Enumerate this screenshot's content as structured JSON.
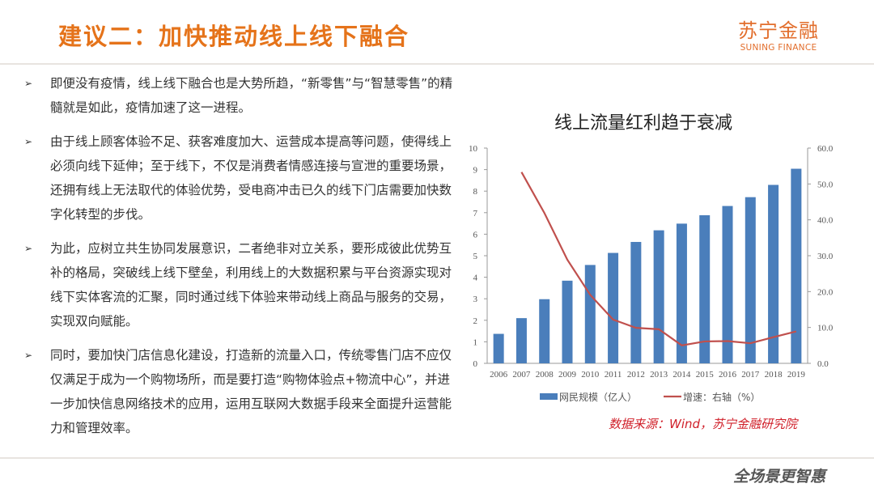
{
  "header": {
    "title": "建议二：加快推动线上线下融合",
    "logo_cn": "苏宁金融",
    "logo_en": "SUNING FINANCE",
    "accent": "#e5731a"
  },
  "bullets": [
    "即便没有疫情，线上线下融合也是大势所趋，“新零售”与“智慧零售”的精髓就是如此，疫情加速了这一进程。",
    "由于线上顾客体验不足、获客难度加大、运营成本提高等问题，使得线上必须向线下延伸；至于线下，不仅是消费者情感连接与宣泄的重要场景，还拥有线上无法取代的体验优势，受电商冲击已久的线下门店需要加快数字化转型的步伐。",
    "为此，应树立共生协同发展意识，二者绝非对立关系，要形成彼此优势互补的格局，突破线上线下壁垒，利用线上的大数据积累与平台资源实现对线下实体客流的汇聚，同时通过线下体验来带动线上商品与服务的交易，实现双向赋能。",
    "同时，要加快门店信息化建设，打造新的流量入口，传统零售门店不应仅仅满足于成为一个购物场所，而是要打造“购物体验点+物流中心”，并进一步加快信息网络技术的应用，运用互联网大数据手段来全面提升运营能力和管理效率。"
  ],
  "bullet_icon": "arrow-right-icon",
  "chart_data": {
    "type": "bar+line",
    "title": "线上流量红利趋于衰减",
    "categories": [
      "2006",
      "2007",
      "2008",
      "2009",
      "2010",
      "2011",
      "2012",
      "2013",
      "2014",
      "2015",
      "2016",
      "2017",
      "2018",
      "2019"
    ],
    "series": [
      {
        "name": "网民规模（亿人）",
        "type": "bar",
        "axis": "left",
        "color": "#4a7ebb",
        "values": [
          1.37,
          2.1,
          2.98,
          3.84,
          4.57,
          5.13,
          5.64,
          6.18,
          6.49,
          6.88,
          7.31,
          7.72,
          8.29,
          9.04
        ]
      },
      {
        "name": "增速：右轴（%）",
        "type": "line",
        "axis": "right",
        "color": "#c0504d",
        "values": [
          null,
          53.3,
          41.9,
          28.9,
          19.1,
          12.2,
          9.9,
          9.5,
          5.0,
          6.1,
          6.2,
          5.6,
          7.3,
          8.9
        ]
      }
    ],
    "y_left": {
      "range": [
        0,
        10
      ],
      "ticks": [
        "0",
        "1",
        "2",
        "3",
        "4",
        "5",
        "6",
        "7",
        "8",
        "9",
        "10"
      ]
    },
    "y_right": {
      "range": [
        0,
        60
      ],
      "ticks": [
        "0.0",
        "10.0",
        "20.0",
        "30.0",
        "40.0",
        "50.0",
        "60.0"
      ]
    },
    "grid": false,
    "legend": "bottom"
  },
  "source": "数据来源：Wind，苏宁金融研究院",
  "footer_slogan": "全场景更智惠"
}
